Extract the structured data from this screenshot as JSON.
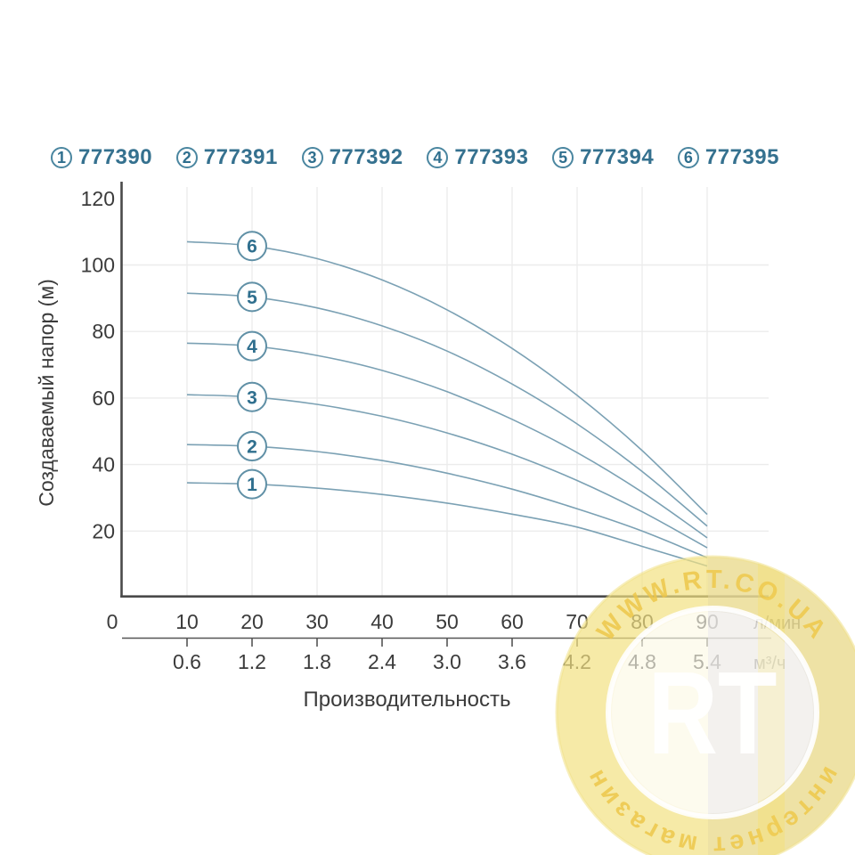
{
  "legend": {
    "items": [
      {
        "num": "1",
        "model": "777390"
      },
      {
        "num": "2",
        "model": "777391"
      },
      {
        "num": "3",
        "model": "777392"
      },
      {
        "num": "4",
        "model": "777393"
      },
      {
        "num": "5",
        "model": "777394"
      },
      {
        "num": "6",
        "model": "777395"
      }
    ]
  },
  "chart_data": {
    "type": "line",
    "title": "",
    "xlabel": "Производительность",
    "ylabel": "Создаваемый напор (м)",
    "xlim_lmin": [
      0,
      100
    ],
    "ylim": [
      0,
      120
    ],
    "grid": true,
    "legend_position": "top",
    "x_axis_primary": {
      "unit": "л/мин",
      "ticks": [
        "0",
        "10",
        "20",
        "30",
        "40",
        "50",
        "60",
        "70",
        "80",
        "90"
      ]
    },
    "x_axis_secondary": {
      "unit": "м³/ч",
      "ticks": [
        "0.6",
        "1.2",
        "1.8",
        "2.4",
        "3.0",
        "3.6",
        "4.2",
        "4.8",
        "5.4"
      ]
    },
    "y_ticks": [
      20,
      40,
      60,
      80,
      100,
      120
    ],
    "x": [
      10,
      20,
      30,
      40,
      50,
      60,
      70,
      80,
      90
    ],
    "series": [
      {
        "label": "1",
        "model": "777390",
        "values": [
          34.5,
          34.1,
          32.9,
          31.0,
          28.4,
          25.1,
          21.2,
          15.4,
          9.5
        ]
      },
      {
        "label": "2",
        "model": "777391",
        "values": [
          46.0,
          45.5,
          43.9,
          41.2,
          37.4,
          32.6,
          26.7,
          20.0,
          12.0
        ]
      },
      {
        "label": "3",
        "model": "777392",
        "values": [
          61.0,
          60.3,
          58.1,
          54.5,
          49.5,
          43.1,
          35.2,
          25.8,
          15.0
        ]
      },
      {
        "label": "4",
        "model": "777393",
        "values": [
          76.5,
          75.6,
          72.8,
          68.3,
          61.9,
          53.6,
          43.6,
          31.7,
          18.0
        ]
      },
      {
        "label": "5",
        "model": "777394",
        "values": [
          91.5,
          90.4,
          87.1,
          81.7,
          74.1,
          64.2,
          52.2,
          37.9,
          21.5
        ]
      },
      {
        "label": "6",
        "model": "777395",
        "values": [
          107.0,
          105.7,
          101.9,
          95.5,
          86.5,
          74.9,
          60.8,
          44.2,
          25.0
        ]
      }
    ]
  },
  "watermark": {
    "top_text": "WWW.RT.CO.UA",
    "center_text": "RT",
    "bottom_text": "интернет магазин"
  },
  "colors": {
    "accent_teal": "#35718f",
    "curve_stroke": "#7ba1b4",
    "circle_stroke": "#6090a6",
    "circle_number": "#2f6f8e",
    "axis": "#4a4a4a",
    "tick_text": "#3b3b3b",
    "grid": "#ececec",
    "watermark_yellow": "#eec94e"
  }
}
